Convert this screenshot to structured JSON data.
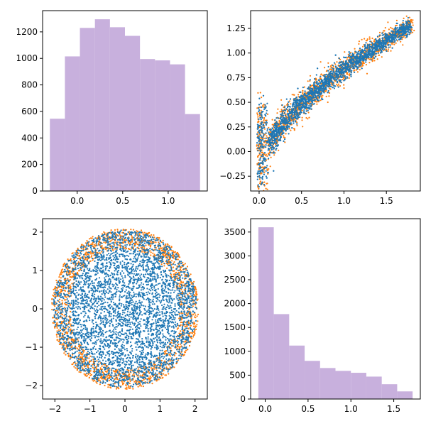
{
  "colors": {
    "hist_fill": "#c8b0dd",
    "series_blue": "#1f77b4",
    "series_orange": "#ff7f0e"
  },
  "chart_data": [
    {
      "type": "bar",
      "subtype": "histogram",
      "position": "top-left",
      "bin_edges": [
        -0.3,
        -0.135,
        0.03,
        0.195,
        0.36,
        0.525,
        0.69,
        0.855,
        1.02,
        1.185,
        1.35
      ],
      "values": [
        545,
        1015,
        1230,
        1295,
        1235,
        1170,
        995,
        985,
        955,
        580
      ],
      "xlim": [
        -0.38,
        1.43
      ],
      "ylim": [
        0,
        1360
      ],
      "xticks": [
        0.0,
        0.5,
        1.0
      ],
      "xtick_labels": [
        "0.0",
        "0.5",
        "1.0"
      ],
      "yticks": [
        0,
        200,
        400,
        600,
        800,
        1000,
        1200
      ],
      "ytick_labels": [
        "0",
        "200",
        "400",
        "600",
        "800",
        "1000",
        "1200"
      ]
    },
    {
      "type": "scatter",
      "position": "top-right",
      "description_shape": "crescent band",
      "xlim": [
        -0.1,
        1.9
      ],
      "ylim": [
        -0.4,
        1.43
      ],
      "xticks": [
        0.0,
        0.5,
        1.0,
        1.5
      ],
      "xtick_labels": [
        "0.0",
        "0.5",
        "1.0",
        "1.5"
      ],
      "yticks": [
        -0.25,
        0.0,
        0.25,
        0.5,
        0.75,
        1.0,
        1.25
      ],
      "ytick_labels": [
        "−0.25",
        "0.00",
        "0.25",
        "0.50",
        "0.75",
        "1.00",
        "1.25"
      ],
      "series": [
        {
          "color": "#ff7f0e",
          "count": 1500
        },
        {
          "color": "#1f77b4",
          "count": 3200
        }
      ]
    },
    {
      "type": "scatter",
      "position": "bottom-left",
      "description_shape": "disk of radius ~2.1",
      "xlim": [
        -2.35,
        2.35
      ],
      "ylim": [
        -2.35,
        2.35
      ],
      "xticks": [
        -2,
        -1,
        0,
        1,
        2
      ],
      "xtick_labels": [
        "−2",
        "−1",
        "0",
        "1",
        "2"
      ],
      "yticks": [
        -2,
        -1,
        0,
        1,
        2
      ],
      "ytick_labels": [
        "−2",
        "−1",
        "0",
        "1",
        "2"
      ],
      "series": [
        {
          "color": "#ff7f0e",
          "count": 1800
        },
        {
          "color": "#1f77b4",
          "count": 4200
        }
      ]
    },
    {
      "type": "bar",
      "subtype": "histogram",
      "position": "bottom-right",
      "bin_edges": [
        -0.08,
        0.1,
        0.28,
        0.46,
        0.64,
        0.82,
        1.0,
        1.18,
        1.36,
        1.54,
        1.72
      ],
      "values": [
        3600,
        1780,
        1120,
        800,
        650,
        590,
        550,
        470,
        310,
        160
      ],
      "xlim": [
        -0.17,
        1.81
      ],
      "ylim": [
        0,
        3780
      ],
      "xticks": [
        0.0,
        0.5,
        1.0,
        1.5
      ],
      "xtick_labels": [
        "0.0",
        "0.5",
        "1.0",
        "1.5"
      ],
      "yticks": [
        0,
        500,
        1000,
        1500,
        2000,
        2500,
        3000,
        3500
      ],
      "ytick_labels": [
        "0",
        "500",
        "1000",
        "1500",
        "2000",
        "2500",
        "3000",
        "3500"
      ]
    }
  ]
}
